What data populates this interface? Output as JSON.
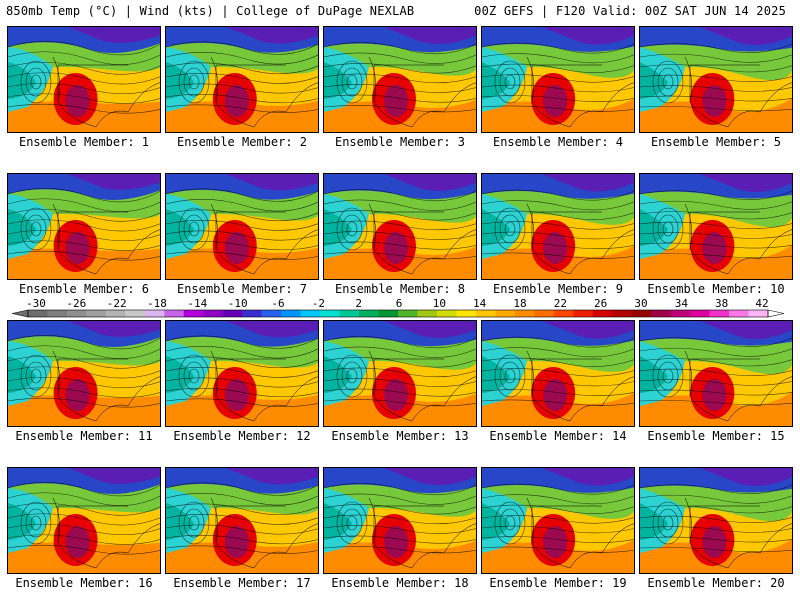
{
  "header": {
    "left": "850mb Temp (°C) | Wind (kts) | College of DuPage NEXLAB",
    "right": "00Z GEFS | F120 Valid: 00Z SAT JUN 14 2025"
  },
  "members": [
    "Ensemble Member: 1",
    "Ensemble Member: 2",
    "Ensemble Member: 3",
    "Ensemble Member: 4",
    "Ensemble Member: 5",
    "Ensemble Member: 6",
    "Ensemble Member: 7",
    "Ensemble Member: 8",
    "Ensemble Member: 9",
    "Ensemble Member: 10",
    "Ensemble Member: 11",
    "Ensemble Member: 12",
    "Ensemble Member: 13",
    "Ensemble Member: 14",
    "Ensemble Member: 15",
    "Ensemble Member: 16",
    "Ensemble Member: 17",
    "Ensemble Member: 18",
    "Ensemble Member: 19",
    "Ensemble Member: 20"
  ],
  "colorbar": {
    "labels": [
      "-30",
      "-26",
      "-22",
      "-18",
      "-14",
      "-10",
      "-6",
      "-2",
      "2",
      "6",
      "10",
      "14",
      "18",
      "22",
      "26",
      "30",
      "34",
      "38",
      "42"
    ],
    "colors": [
      "#6e6e6e",
      "#7f7f7f",
      "#8f8f8f",
      "#a0a0a0",
      "#b3b3b3",
      "#c9c9c9",
      "#dcb4f0",
      "#c864e6",
      "#b400dc",
      "#8c00c8",
      "#6400b4",
      "#3c2cd2",
      "#2860f0",
      "#0094ff",
      "#00c8ff",
      "#00e0d0",
      "#00c896",
      "#00b060",
      "#009632",
      "#50b428",
      "#a0c814",
      "#d2dc0a",
      "#ffe600",
      "#ffc800",
      "#ffaa00",
      "#ff8c00",
      "#ff6e00",
      "#ff4600",
      "#f01e00",
      "#d20000",
      "#b40000",
      "#960000",
      "#a00046",
      "#be0078",
      "#dc00a0",
      "#f032c8",
      "#ff78e6",
      "#ffb4f5"
    ]
  },
  "map_colors": {
    "ocean_deep": "#00b4a0",
    "ocean": "#2dd2d2",
    "north": "#5a1eb4",
    "north2": "#2846c8",
    "mid": "#78c83c",
    "warm": "#ffc800",
    "hot": "#ff8c00",
    "heat": "#e60000",
    "core": "#9b0a50"
  }
}
